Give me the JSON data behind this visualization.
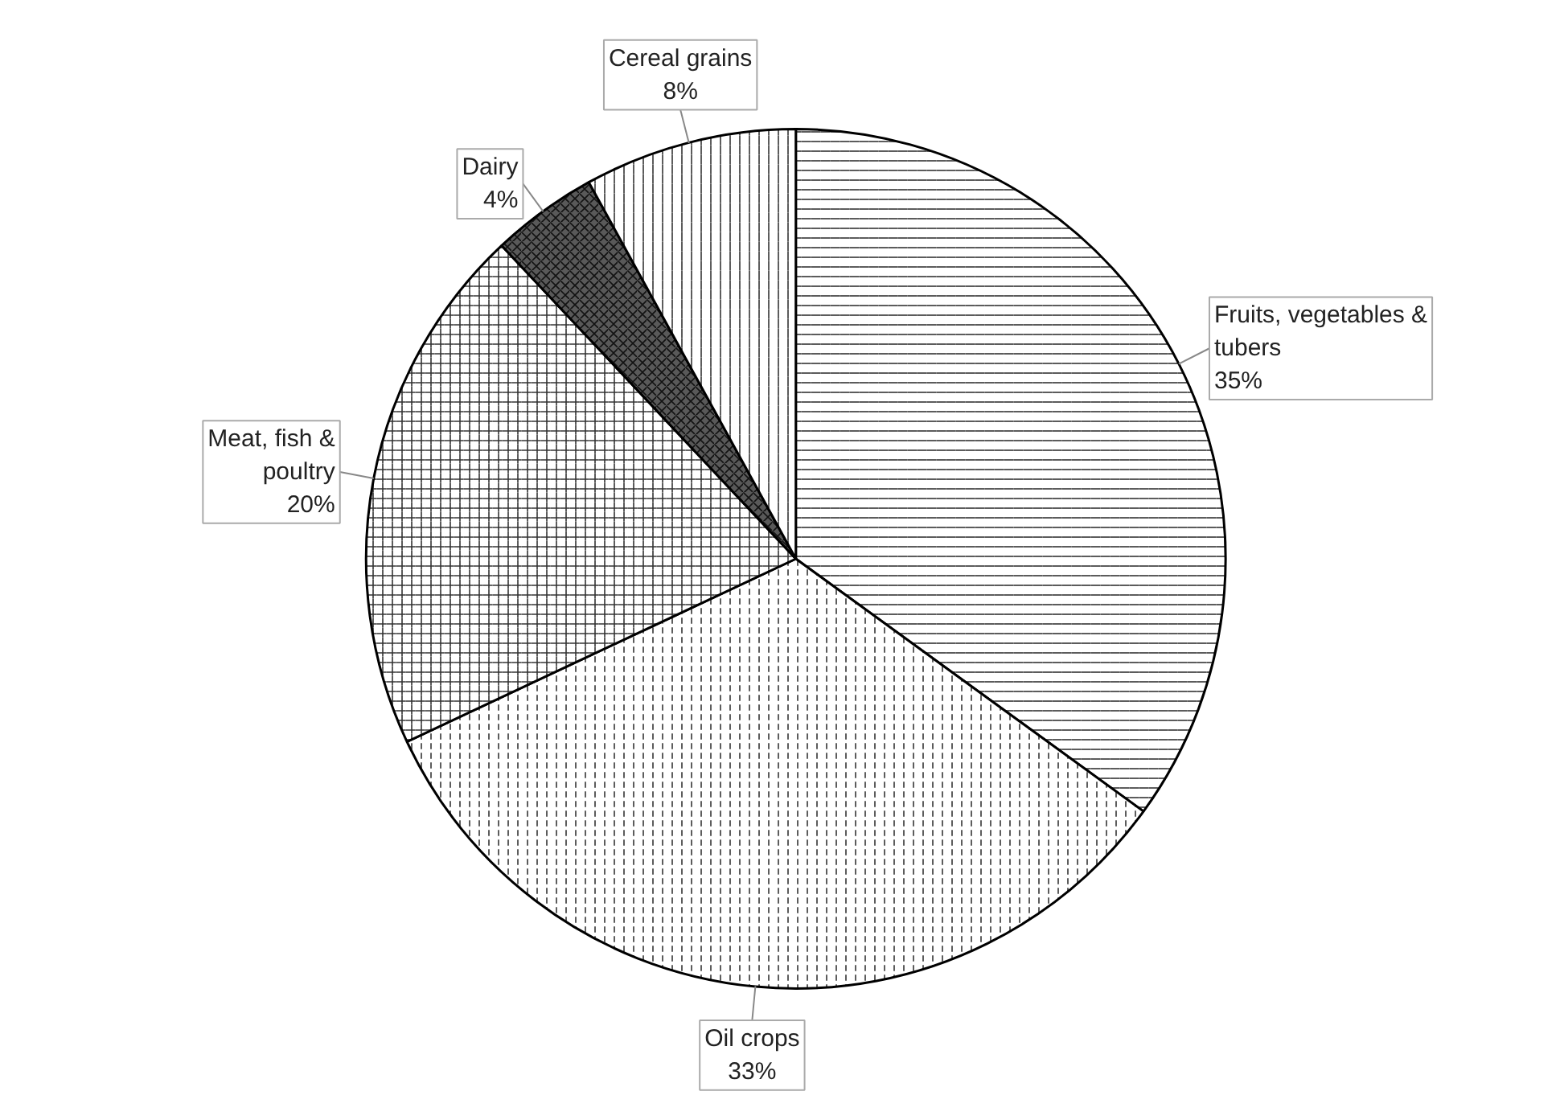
{
  "chart_data": {
    "type": "pie",
    "categories": [
      "Fruits, vegetables & tubers",
      "Oil crops",
      "Meat, fish & poultry",
      "Dairy",
      "Cereal grains"
    ],
    "values": [
      35,
      33,
      20,
      4,
      8
    ],
    "value_labels": [
      "35%",
      "33%",
      "20%",
      "4%",
      "8%"
    ],
    "colors": [
      "#ffffff",
      "#ffffff",
      "#ffffff",
      "#595959",
      "#ffffff"
    ]
  }
}
